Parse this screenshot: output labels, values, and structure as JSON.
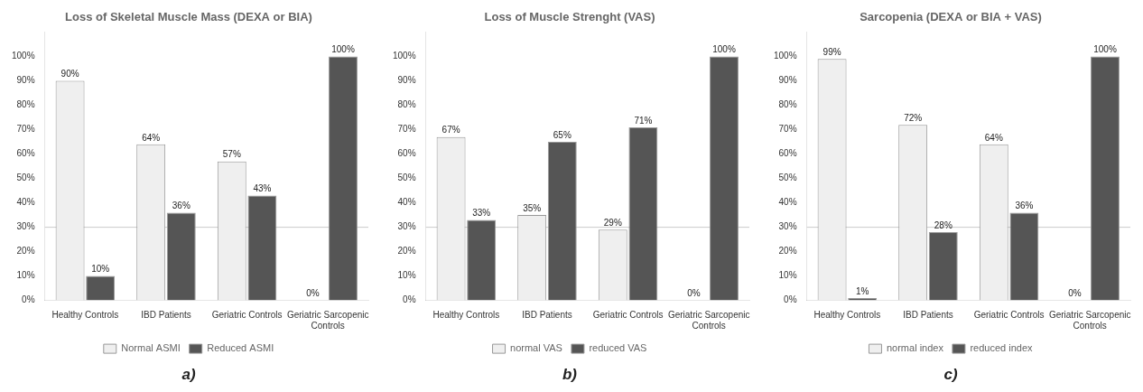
{
  "chart_data": [
    {
      "type": "bar",
      "title": "Loss of Skeletal Muscle Mass (DEXA or BIA)",
      "categories": [
        "Healthy Controls",
        "IBD Patients",
        "Geriatric Controls",
        "Geriatric Sarcopenic\nControls"
      ],
      "series": [
        {
          "name": "Normal ASMI",
          "color": "#efefef",
          "values": [
            90,
            64,
            57,
            0
          ],
          "value_labels": [
            "90%",
            "64%",
            "57%",
            "0%"
          ]
        },
        {
          "name": "Reduced ASMI",
          "color": "#555555",
          "values": [
            10,
            36,
            43,
            100
          ],
          "value_labels": [
            "10%",
            "36%",
            "43%",
            "100%"
          ]
        }
      ],
      "ylim": [
        0,
        110
      ],
      "yticks": [
        {
          "value": 0,
          "label": "0%"
        },
        {
          "value": 10,
          "label": "10%"
        },
        {
          "value": 20,
          "label": "20%"
        },
        {
          "value": 30,
          "label": "30%"
        },
        {
          "value": 40,
          "label": "40%"
        },
        {
          "value": 50,
          "label": "50%"
        },
        {
          "value": 60,
          "label": "60%"
        },
        {
          "value": 70,
          "label": "70%"
        },
        {
          "value": 80,
          "label": "80%"
        },
        {
          "value": 90,
          "label": "90%"
        },
        {
          "value": 100,
          "label": "100%"
        }
      ],
      "grid": false,
      "legend": "bottom",
      "data_labels": true,
      "reference_line": {
        "value": 30,
        "color": "#cccccc"
      },
      "panel_label": "a)"
    },
    {
      "type": "bar",
      "title": "Loss of Muscle Strenght (VAS)",
      "categories": [
        "Healthy Controls",
        "IBD Patients",
        "Geriatric Controls",
        "Geriatric Sarcopenic\nControls"
      ],
      "series": [
        {
          "name": "normal VAS",
          "color": "#efefef",
          "values": [
            67,
            35,
            29,
            0
          ],
          "value_labels": [
            "67%",
            "35%",
            "29%",
            "0%"
          ]
        },
        {
          "name": "reduced VAS",
          "color": "#555555",
          "values": [
            33,
            65,
            71,
            100
          ],
          "value_labels": [
            "33%",
            "65%",
            "71%",
            "100%"
          ]
        }
      ],
      "ylim": [
        0,
        110
      ],
      "yticks": [
        {
          "value": 0,
          "label": "0%"
        },
        {
          "value": 10,
          "label": "10%"
        },
        {
          "value": 20,
          "label": "20%"
        },
        {
          "value": 30,
          "label": "30%"
        },
        {
          "value": 40,
          "label": "40%"
        },
        {
          "value": 50,
          "label": "50%"
        },
        {
          "value": 60,
          "label": "60%"
        },
        {
          "value": 70,
          "label": "70%"
        },
        {
          "value": 80,
          "label": "80%"
        },
        {
          "value": 90,
          "label": "90%"
        },
        {
          "value": 100,
          "label": "100%"
        }
      ],
      "grid": false,
      "legend": "bottom",
      "data_labels": true,
      "reference_line": {
        "value": 30,
        "color": "#cccccc"
      },
      "panel_label": "b)"
    },
    {
      "type": "bar",
      "title": "Sarcopenia (DEXA or BIA + VAS)",
      "categories": [
        "Healthy Controls",
        "IBD Patients",
        "Geriatric Controls",
        "Geriatric Sarcopenic\nControls"
      ],
      "series": [
        {
          "name": "normal index",
          "color": "#efefef",
          "values": [
            99,
            72,
            64,
            0
          ],
          "value_labels": [
            "99%",
            "72%",
            "64%",
            "0%"
          ]
        },
        {
          "name": "reduced index",
          "color": "#555555",
          "values": [
            1,
            28,
            36,
            100
          ],
          "value_labels": [
            "1%",
            "28%",
            "36%",
            "100%"
          ]
        }
      ],
      "ylim": [
        0,
        110
      ],
      "yticks": [
        {
          "value": 0,
          "label": "0%"
        },
        {
          "value": 10,
          "label": "10%"
        },
        {
          "value": 20,
          "label": "20%"
        },
        {
          "value": 30,
          "label": "30%"
        },
        {
          "value": 40,
          "label": "40%"
        },
        {
          "value": 50,
          "label": "50%"
        },
        {
          "value": 60,
          "label": "60%"
        },
        {
          "value": 70,
          "label": "70%"
        },
        {
          "value": 80,
          "label": "80%"
        },
        {
          "value": 90,
          "label": "90%"
        },
        {
          "value": 100,
          "label": "100%"
        }
      ],
      "grid": false,
      "legend": "bottom",
      "data_labels": true,
      "reference_line": {
        "value": 30,
        "color": "#cccccc"
      },
      "panel_label": "c)"
    }
  ]
}
